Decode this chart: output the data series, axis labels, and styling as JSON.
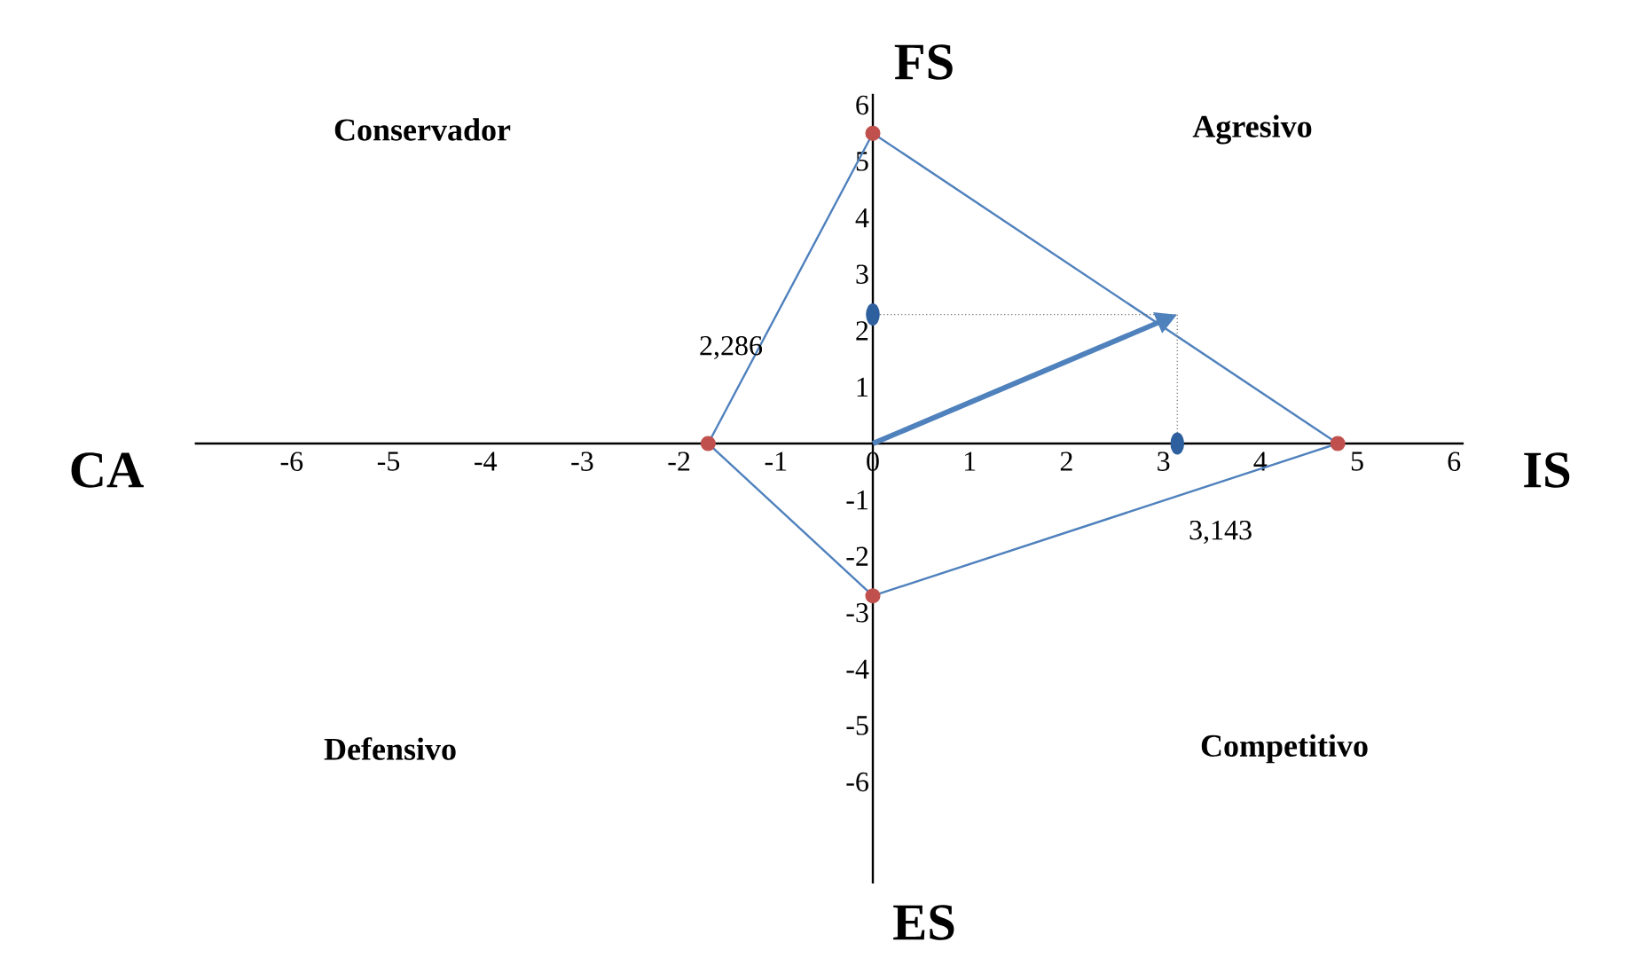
{
  "chart_data": {
    "type": "scatter",
    "grid": false,
    "xlim": [
      -7,
      6.1
    ],
    "ylim": [
      -7.8,
      6.2
    ],
    "xticks": [
      -6,
      -5,
      -4,
      -3,
      -2,
      -1,
      0,
      1,
      2,
      3,
      4,
      5,
      6
    ],
    "yticks": [
      -6,
      -5,
      -4,
      -3,
      -2,
      -1,
      1,
      2,
      3,
      4,
      5,
      6
    ],
    "series": [
      {
        "type": "line",
        "marker": "none",
        "color": "#4f81bd",
        "x": [
          -1.7,
          0,
          4.8
        ],
        "values": [
          0,
          5.5,
          0
        ]
      },
      {
        "type": "line",
        "marker": "none",
        "color": "#4f81bd",
        "x": [
          -1.7,
          0,
          4.8
        ],
        "values": [
          0,
          -2.7,
          0
        ]
      },
      {
        "marker": "circle",
        "color": "#c0504d",
        "x": [
          0,
          4.8,
          0,
          -1.7
        ],
        "values": [
          5.5,
          0,
          -2.7,
          0
        ]
      },
      {
        "type": "line",
        "marker": "none",
        "color": "#7f7f7f",
        "line_style": "dotted",
        "x": [
          0,
          3.143
        ],
        "values": [
          2.286,
          2.286
        ]
      },
      {
        "type": "line",
        "marker": "none",
        "color": "#7f7f7f",
        "line_style": "dotted",
        "x": [
          3.143,
          3.143
        ],
        "values": [
          0,
          2.286
        ]
      },
      {
        "marker": "circle",
        "color": "#2e5f9e",
        "x": [
          0,
          3.143
        ],
        "values": [
          2.286,
          0
        ]
      }
    ],
    "annotations": [
      "Conservador",
      "Agresivo",
      "Defensivo",
      "Competitivo",
      "FS",
      "ES",
      "CA",
      "IS",
      "2,286",
      "3,143"
    ]
  }
}
